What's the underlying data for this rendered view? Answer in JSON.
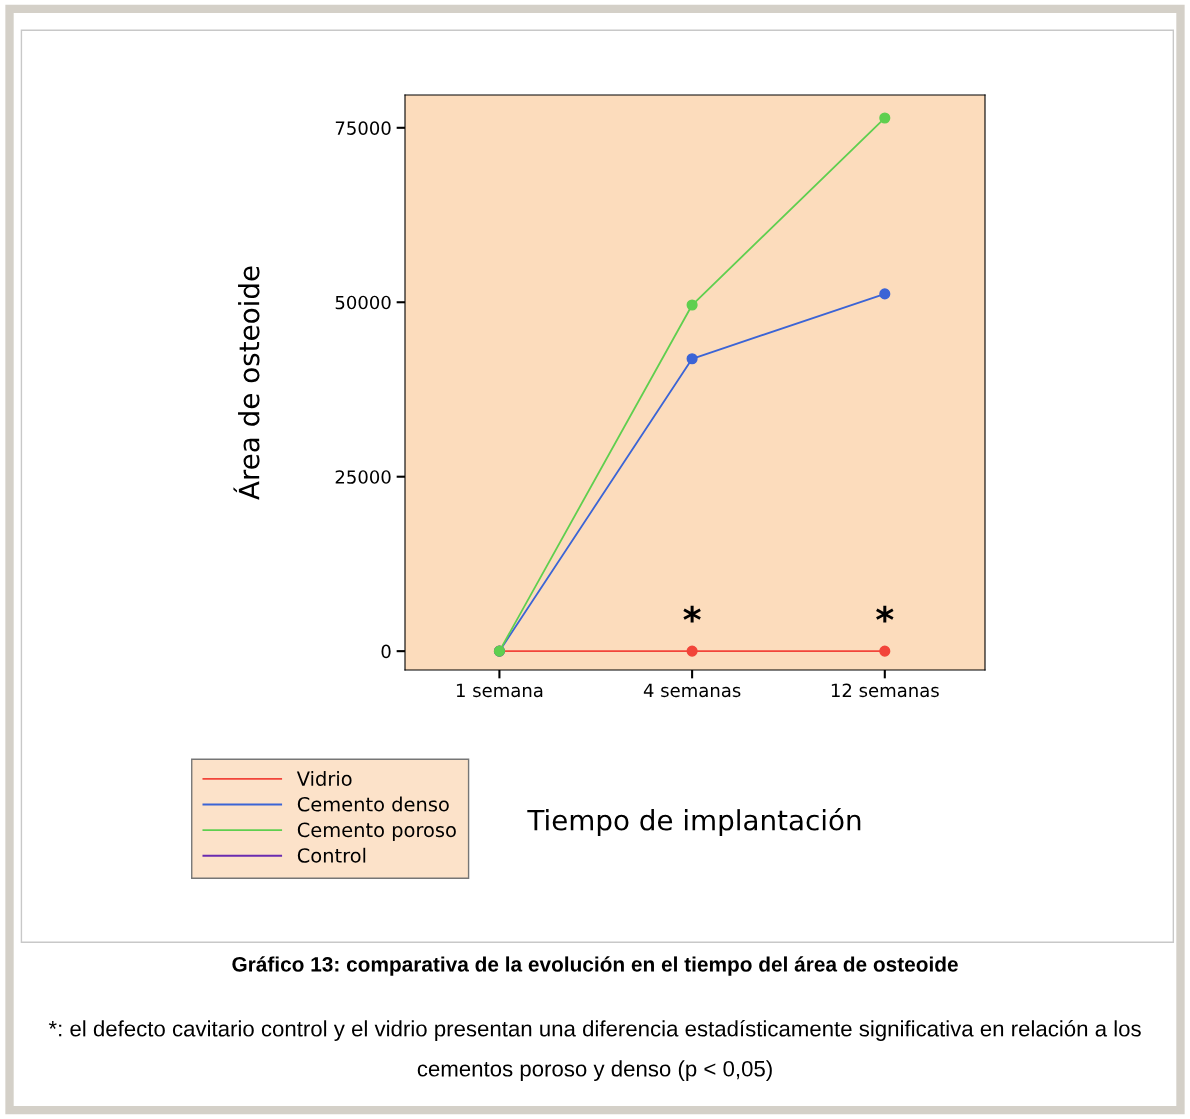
{
  "chart_data": {
    "type": "line",
    "title": "Gráfico 13: comparativa de la evolución en el tiempo del área de osteoide",
    "xlabel": "Tiempo de implantación",
    "ylabel": "Área de osteoide",
    "categories": [
      "1 semana",
      "4 semanas",
      "12 semanas"
    ],
    "series": [
      {
        "name": "Vidrio",
        "color": "#f2453a",
        "values": [
          0,
          0,
          0
        ]
      },
      {
        "name": "Cemento denso",
        "color": "#3b64d6",
        "values": [
          0,
          41900,
          51200
        ]
      },
      {
        "name": "Cemento poroso",
        "color": "#5fcf4f",
        "values": [
          0,
          49600,
          76400
        ]
      },
      {
        "name": "Control",
        "color": "#6a2bb0",
        "values": [
          null,
          null,
          null
        ]
      }
    ],
    "ylim": [
      -2700,
      79700
    ],
    "yticks": [
      0,
      25000,
      50000,
      75000
    ],
    "grid": false,
    "legend": "bottom left",
    "marker": "circle",
    "line_style": "solid",
    "annotations": [
      {
        "text": "*",
        "x": "4 semanas",
        "y": 0
      },
      {
        "text": "*",
        "x": "12 semanas",
        "y": 0
      },
      "*: el defecto cavitario control y el vidrio presentan una diferencia estadísticamente significativa en relación a los cementos poroso y denso (p < 0,05)"
    ]
  }
}
